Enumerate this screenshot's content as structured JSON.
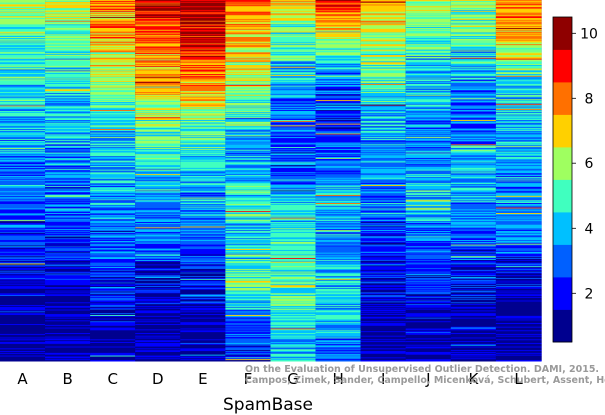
{
  "chart_data": {
    "type": "heatmap",
    "title": "",
    "xlabel": "SpamBase",
    "ylabel": "",
    "categories": [
      "A",
      "B",
      "C",
      "D",
      "E",
      "F",
      "G",
      "H",
      "I",
      "J",
      "K",
      "L"
    ],
    "colorbar": {
      "ticks": [
        2,
        4,
        6,
        8,
        10
      ],
      "range": [
        0.5,
        10.5
      ],
      "bands": 10,
      "colors": [
        "#00008f",
        "#0000ff",
        "#0060ff",
        "#00c0ff",
        "#40ffbf",
        "#9fff60",
        "#ffd000",
        "#ff7000",
        "#ff0000",
        "#8f0000"
      ]
    },
    "rows_approx": 400,
    "column_profiles": [
      {
        "name": "A",
        "values_by_depth": [
          6,
          5,
          4.5,
          4,
          3.5,
          3,
          2.5,
          1.5,
          1,
          1
        ]
      },
      {
        "name": "B",
        "values_by_depth": [
          6.5,
          5,
          4.5,
          4,
          3.5,
          3,
          2.5,
          1.5,
          1,
          1
        ]
      },
      {
        "name": "C",
        "values_by_depth": [
          8,
          7,
          6,
          4.5,
          4,
          3.5,
          3,
          2.5,
          1.5,
          1
        ]
      },
      {
        "name": "D",
        "values_by_depth": [
          9,
          8,
          7,
          5.5,
          4.5,
          3.5,
          3,
          2,
          1,
          1
        ]
      },
      {
        "name": "E",
        "values_by_depth": [
          10,
          9,
          7.5,
          5.5,
          4.5,
          3.5,
          3,
          2,
          1,
          1
        ]
      },
      {
        "name": "F",
        "values_by_depth": [
          8,
          7,
          6,
          4.5,
          3.5,
          5,
          4,
          5.5,
          3,
          2
        ]
      },
      {
        "name": "G",
        "values_by_depth": [
          7,
          5,
          4,
          3,
          2.5,
          4,
          5,
          5.5,
          4.5,
          4
        ]
      },
      {
        "name": "H",
        "values_by_depth": [
          9,
          6,
          3,
          2.5,
          3,
          4,
          3.5,
          4,
          4,
          3
        ]
      },
      {
        "name": "I",
        "values_by_depth": [
          8,
          6,
          5,
          4,
          3.5,
          3,
          2.5,
          2,
          1,
          1
        ]
      },
      {
        "name": "J",
        "values_by_depth": [
          6,
          5,
          4,
          3.5,
          3.5,
          4.5,
          3,
          2.5,
          1.5,
          1
        ]
      },
      {
        "name": "K",
        "values_by_depth": [
          6,
          5,
          3.5,
          3,
          4,
          3.5,
          3,
          2,
          1,
          1
        ]
      },
      {
        "name": "L",
        "values_by_depth": [
          8,
          7,
          4.5,
          4,
          3.5,
          3.5,
          3,
          1.5,
          1,
          1
        ]
      }
    ]
  },
  "credit": {
    "line1": "On the Evaluation of Unsupervised Outlier Detection. DAMI, 2015.",
    "line2": "Campos, Zimek, Sander, Campello, Micenková, Schubert, Assent, Houle"
  }
}
